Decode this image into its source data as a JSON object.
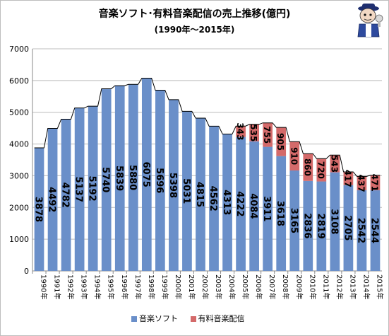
{
  "title": "音楽ソフト･有料音楽配信の売上推移(億円)",
  "subtitle": "(1990年～2015年)",
  "icon": "mascot-character-icon",
  "colors": {
    "music_software": "#6a8fc9",
    "paid_download": "#d46a6a",
    "total_line": "#000000",
    "grid": "#bcbcbc"
  },
  "chart_data": {
    "type": "bar",
    "stacked": true,
    "categories": [
      "1990年",
      "1991年",
      "1992年",
      "1993年",
      "1994年",
      "1995年",
      "1996年",
      "1997年",
      "1998年",
      "1999年",
      "2000年",
      "2001年",
      "2002年",
      "2003年",
      "2004年",
      "2005年",
      "2006年",
      "2007年",
      "2008年",
      "2009年",
      "2010年",
      "2011年",
      "2012年",
      "2013年",
      "2014年",
      "2015年"
    ],
    "series": [
      {
        "name": "音楽ソフト",
        "values": [
          3878,
          4492,
          4782,
          5137,
          5192,
          5740,
          5839,
          5880,
          6075,
          5696,
          5398,
          5031,
          4815,
          4562,
          4313,
          4222,
          4084,
          3911,
          3618,
          3165,
          2836,
          2819,
          3108,
          2705,
          2542,
          2544
        ]
      },
      {
        "name": "有料音楽配信",
        "values": [
          null,
          null,
          null,
          null,
          null,
          null,
          null,
          null,
          null,
          null,
          null,
          null,
          null,
          null,
          null,
          343,
          535,
          755,
          905,
          910,
          860,
          720,
          543,
          417,
          437,
          471
        ]
      }
    ],
    "ylim": [
      0,
      7000
    ],
    "yticks": [
      0,
      1000,
      2000,
      3000,
      4000,
      5000,
      6000,
      7000
    ],
    "grid": true,
    "legend": "bottom"
  }
}
